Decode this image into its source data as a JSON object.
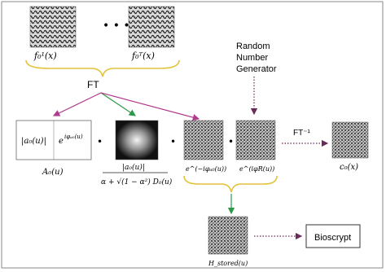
{
  "top_images": {
    "left_label": "f₀¹(x)",
    "right_label": "f₀ᵀ(x)",
    "dots": "•   •   •"
  },
  "ft_label": "FT",
  "rng": {
    "line1": "Random",
    "line2": "Number",
    "line3": "Generator"
  },
  "filter_box": {
    "magnitude": "|a₀(u)|",
    "phase_prefix": "e",
    "phase_exp": "iφₐ₀(u)",
    "label": "A₀(u)"
  },
  "multiply_sign": "•",
  "fraction": {
    "numerator": "|a₀(u)|",
    "denominator": "α + √(1 − α²) D₀(u)"
  },
  "phase_images": {
    "left_label": "e^(−iφₐ₀(u))",
    "right_label": "e^(iφR(u))"
  },
  "inverse_ft": {
    "label": "FT⁻¹",
    "output_label": "c₀(x)"
  },
  "stored_label": "H_stored(u)",
  "bioscrypt_label": "Bioscrypt",
  "colors": {
    "frame": "#8a8a8a",
    "arrow_green": "#2d9a4a",
    "arrow_magenta": "#b23a8e",
    "arrow_dark": "#6a2a5a",
    "brace": "#e3c23a"
  }
}
